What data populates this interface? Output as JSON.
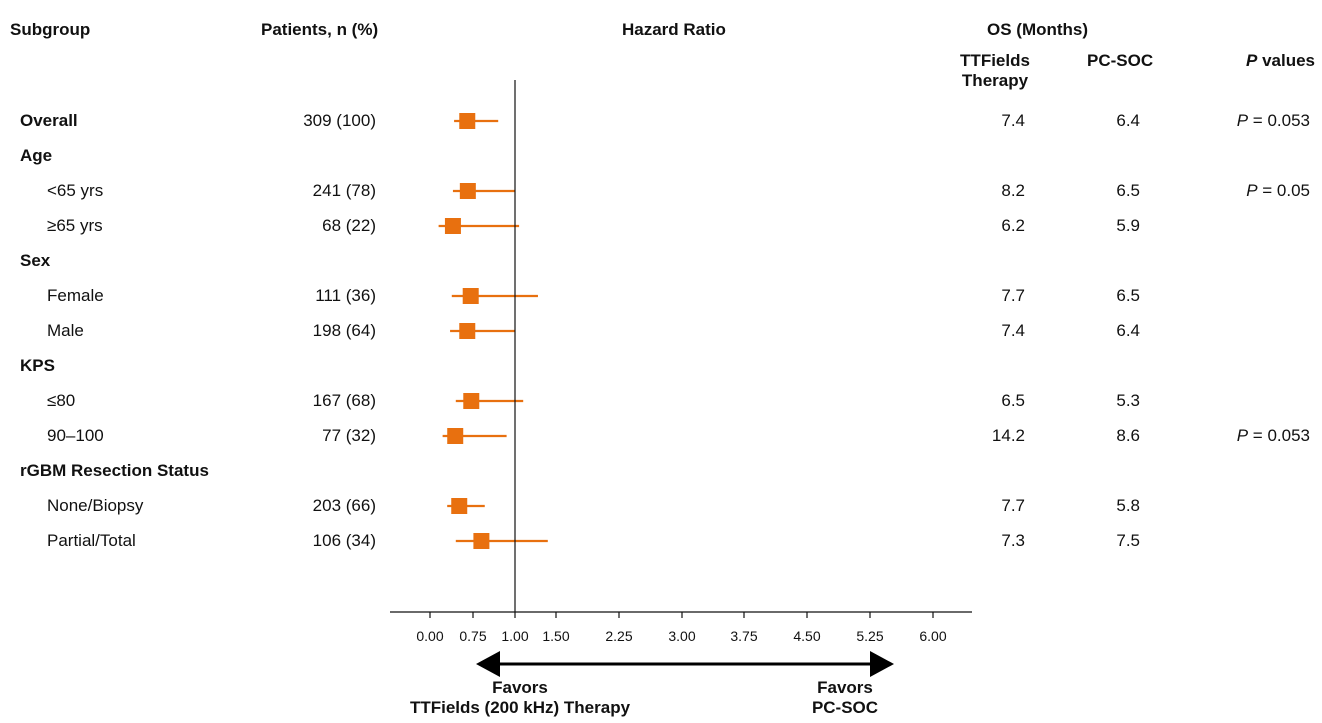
{
  "headers": {
    "subgroup": "Subgroup",
    "patients": "Patients, n (%)",
    "hazard_ratio": "Hazard Ratio",
    "os": "OS (Months)",
    "ttfields_line1": "TTFields",
    "ttfields_line2": "Therapy",
    "pcsoc": "PC-SOC",
    "p_italic": "P",
    "p_rest": " values"
  },
  "favors": {
    "left_line1": "Favors",
    "left_line2": "TTFields (200 kHz) Therapy",
    "right_line1": "Favors",
    "right_line2": "PC-SOC"
  },
  "colors": {
    "marker": "#E8700F",
    "axis": "#111111"
  },
  "chart_data": {
    "type": "forest",
    "title": "Hazard Ratio",
    "reference_line": 1.0,
    "axis_ticks": [
      {
        "value": 0.0,
        "label": "0.00"
      },
      {
        "value": 0.75,
        "label": "0.75"
      },
      {
        "value": 1.0,
        "label": "1.00"
      },
      {
        "value": 1.5,
        "label": "1.50"
      },
      {
        "value": 2.25,
        "label": "2.25"
      },
      {
        "value": 3.0,
        "label": "3.00"
      },
      {
        "value": 3.75,
        "label": "3.75"
      },
      {
        "value": 4.5,
        "label": "4.50"
      },
      {
        "value": 5.25,
        "label": "5.25"
      },
      {
        "value": 6.0,
        "label": "6.00"
      }
    ],
    "rows": [
      {
        "label": "Overall",
        "bold": true,
        "header": false,
        "n": "309 (100)",
        "hr": 0.65,
        "lo": 0.42,
        "hi": 0.9,
        "os_tt": "7.4",
        "os_pc": "6.4",
        "p": "= 0.053"
      },
      {
        "label": "Age",
        "bold": true,
        "header": true
      },
      {
        "label": "<65 yrs",
        "bold": false,
        "header": false,
        "n": "241 (78)",
        "hr": 0.66,
        "lo": 0.4,
        "hi": 1.0,
        "os_tt": "8.2",
        "os_pc": "6.5",
        "p": "= 0.05"
      },
      {
        "label": "≥65 yrs",
        "bold": false,
        "header": false,
        "n": "68 (22)",
        "hr": 0.4,
        "lo": 0.15,
        "hi": 1.05,
        "os_tt": "6.2",
        "os_pc": "5.9",
        "p": ""
      },
      {
        "label": "Sex",
        "bold": true,
        "header": true
      },
      {
        "label": "Female",
        "bold": false,
        "header": false,
        "n": "111 (36)",
        "hr": 0.71,
        "lo": 0.38,
        "hi": 1.28,
        "os_tt": "7.7",
        "os_pc": "6.5",
        "p": ""
      },
      {
        "label": "Male",
        "bold": false,
        "header": false,
        "n": "198 (64)",
        "hr": 0.65,
        "lo": 0.35,
        "hi": 1.0,
        "os_tt": "7.4",
        "os_pc": "6.4",
        "p": ""
      },
      {
        "label": "KPS",
        "bold": true,
        "header": true
      },
      {
        "label": "≤80",
        "bold": false,
        "header": false,
        "n": "167 (68)",
        "hr": 0.72,
        "lo": 0.45,
        "hi": 1.1,
        "os_tt": "6.5",
        "os_pc": "5.3",
        "p": ""
      },
      {
        "label": "90–100",
        "bold": false,
        "header": false,
        "n": "77 (32)",
        "hr": 0.44,
        "lo": 0.22,
        "hi": 0.95,
        "os_tt": "14.2",
        "os_pc": "8.6",
        "p": "= 0.053"
      },
      {
        "label": "rGBM Resection Status",
        "bold": true,
        "header": true
      },
      {
        "label": "None/Biopsy",
        "bold": false,
        "header": false,
        "n": "203 (66)",
        "hr": 0.51,
        "lo": 0.3,
        "hi": 0.82,
        "os_tt": "7.7",
        "os_pc": "5.8",
        "p": ""
      },
      {
        "label": "Partial/Total",
        "bold": false,
        "header": false,
        "n": "106 (34)",
        "hr": 0.8,
        "lo": 0.45,
        "hi": 1.4,
        "os_tt": "7.3",
        "os_pc": "7.5",
        "p": ""
      }
    ]
  }
}
